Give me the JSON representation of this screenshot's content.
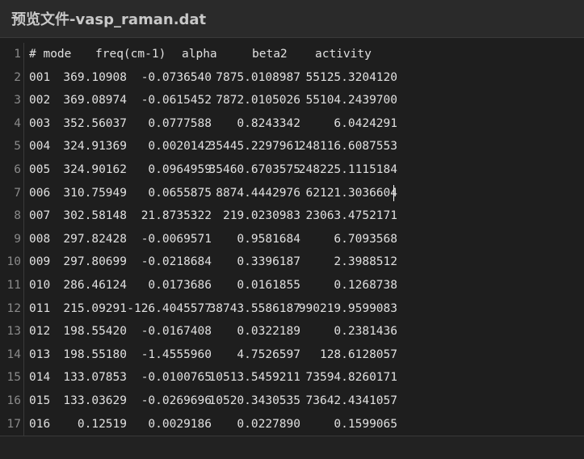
{
  "window": {
    "title": "预览文件-vasp_raman.dat"
  },
  "file": {
    "header": [
      "# mode",
      "freq(cm-1)",
      "alpha",
      "beta2",
      "activity"
    ],
    "rows": [
      [
        "001",
        "369.10908",
        "-0.0736540",
        "7875.0108987",
        "55125.3204120"
      ],
      [
        "002",
        "369.08974",
        "-0.0615452",
        "7872.0105026",
        "55104.2439700"
      ],
      [
        "003",
        "352.56037",
        "0.0777588",
        "0.8243342",
        "6.0424291"
      ],
      [
        "004",
        "324.91369",
        "0.0020142",
        "35445.2297961",
        "248116.6087553"
      ],
      [
        "005",
        "324.90162",
        "0.0964959",
        "35460.6703575",
        "248225.1115184"
      ],
      [
        "006",
        "310.75949",
        "0.0655875",
        "8874.4442976",
        "62121.3036604"
      ],
      [
        "007",
        "302.58148",
        "21.8735322",
        "219.0230983",
        "23063.4752171"
      ],
      [
        "008",
        "297.82428",
        "-0.0069571",
        "0.9581684",
        "6.7093568"
      ],
      [
        "009",
        "297.80699",
        "-0.0218684",
        "0.3396187",
        "2.3988512"
      ],
      [
        "010",
        "286.46124",
        "0.0173686",
        "0.0161855",
        "0.1268738"
      ],
      [
        "011",
        "215.09291",
        "-126.4045577",
        "38743.5586187",
        "990219.9599083"
      ],
      [
        "012",
        "198.55420",
        "-0.0167408",
        "0.0322189",
        "0.2381436"
      ],
      [
        "013",
        "198.55180",
        "-1.4555960",
        "4.7526597",
        "128.6128057"
      ],
      [
        "014",
        "133.07853",
        "-0.0100765",
        "10513.5459211",
        "73594.8260171"
      ],
      [
        "015",
        "133.03629",
        "-0.0269696",
        "10520.3430535",
        "73642.4341057"
      ],
      [
        "016",
        "0.12519",
        "0.0029186",
        "0.0227890",
        "0.1599065"
      ]
    ]
  }
}
